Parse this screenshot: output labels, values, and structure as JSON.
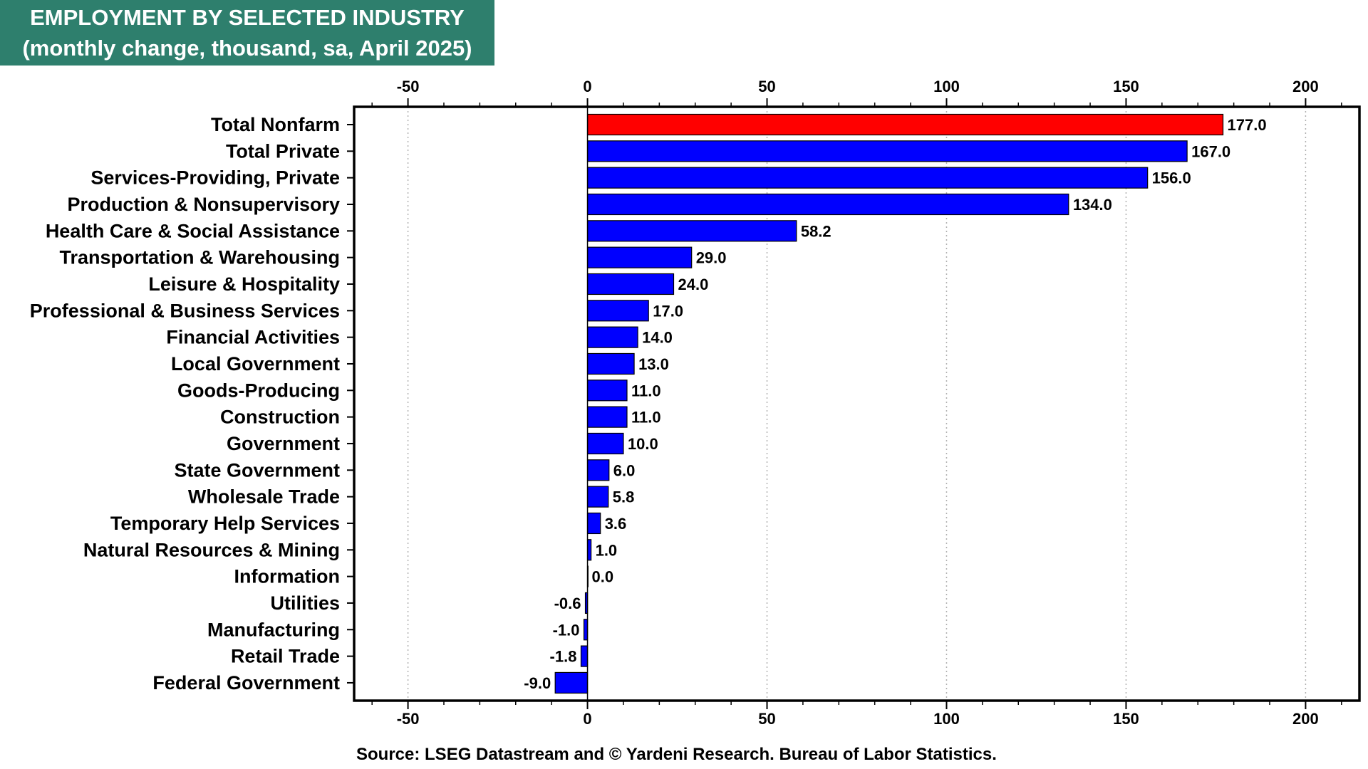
{
  "header": {
    "title_line1": "EMPLOYMENT BY SELECTED INDUSTRY",
    "title_line2": "(monthly change, thousand, sa, April 2025)"
  },
  "footer": {
    "source": "Source: LSEG Datastream and © Yardeni Research. Bureau of Labor Statistics."
  },
  "chart_data": {
    "type": "bar",
    "orientation": "horizontal",
    "title": "EMPLOYMENT BY SELECTED INDUSTRY",
    "subtitle": "(monthly change, thousand, sa, April 2025)",
    "xlim": [
      -65,
      215
    ],
    "ticks": [
      -50,
      0,
      50,
      100,
      150,
      200
    ],
    "tick_labels": [
      "-50",
      "0",
      "50",
      "100",
      "150",
      "200"
    ],
    "grid": "vertical dotted",
    "colors": {
      "highlight": "#ff0000",
      "default": "#0000ff",
      "frame": "#000000"
    },
    "categories": [
      "Total Nonfarm",
      "Total Private",
      "Services-Providing, Private",
      "Production & Nonsupervisory",
      "Health Care & Social Assistance",
      "Transportation & Warehousing",
      "Leisure & Hospitality",
      "Professional & Business Services",
      "Financial Activities",
      "Local Government",
      "Goods-Producing",
      "Construction",
      "Government",
      "State Government",
      "Wholesale Trade",
      "Temporary Help Services",
      "Natural Resources & Mining",
      "Information",
      "Utilities",
      "Manufacturing",
      "Retail Trade",
      "Federal Government"
    ],
    "values": [
      177.0,
      167.0,
      156.0,
      134.0,
      58.2,
      29.0,
      24.0,
      17.0,
      14.0,
      13.0,
      11.0,
      11.0,
      10.0,
      6.0,
      5.8,
      3.6,
      1.0,
      0.0,
      -0.6,
      -1.0,
      -1.8,
      -9.0
    ],
    "value_labels": [
      "177.0",
      "167.0",
      "156.0",
      "134.0",
      "58.2",
      "29.0",
      "24.0",
      "17.0",
      "14.0",
      "13.0",
      "11.0",
      "11.0",
      "10.0",
      "6.0",
      "5.8",
      "3.6",
      "1.0",
      "0.0",
      "-0.6",
      "-1.0",
      "-1.8",
      "-9.0"
    ],
    "highlight_index": 0
  }
}
